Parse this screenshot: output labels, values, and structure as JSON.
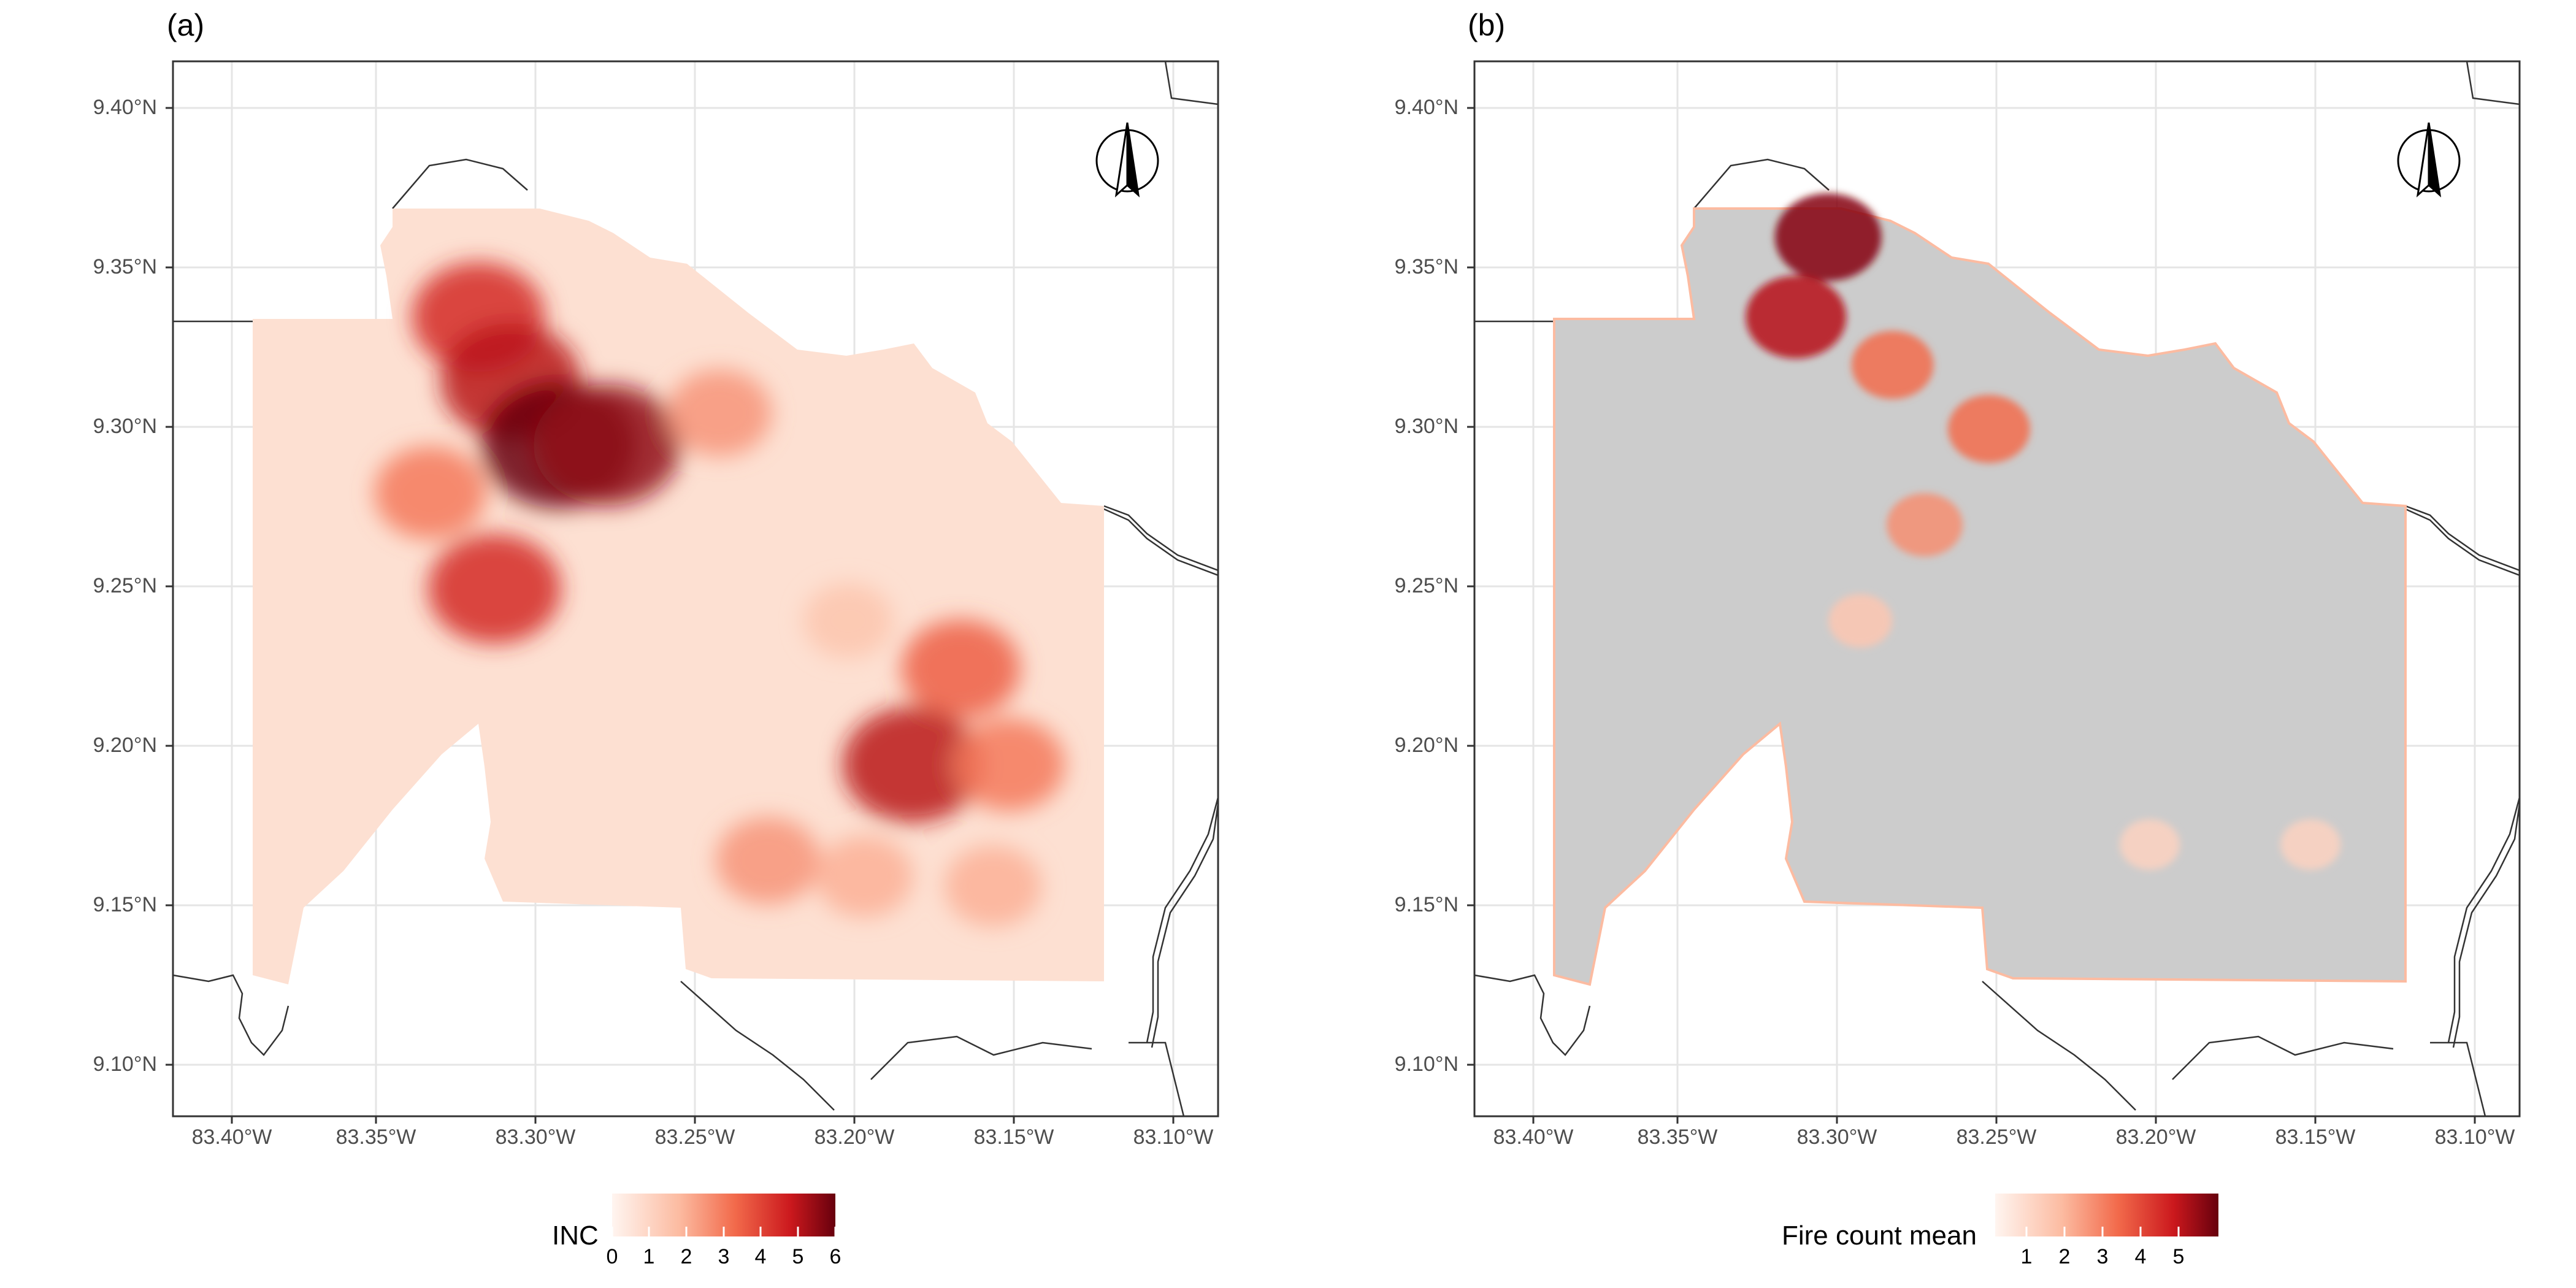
{
  "panels": [
    {
      "tag": "(a)",
      "legend": {
        "title": "INC",
        "ticks": [
          "0",
          "1",
          "2",
          "3",
          "4",
          "5",
          "6"
        ],
        "min": 0,
        "max": 6
      },
      "north_label": "N"
    },
    {
      "tag": "(b)",
      "legend": {
        "title": "Fire count mean",
        "ticks": [
          "1",
          "2",
          "3",
          "4",
          "5"
        ],
        "min": 0.3,
        "max": 5.3
      },
      "north_label": "N"
    }
  ],
  "y_axis": [
    "9.40°N",
    "9.35°N",
    "9.30°N",
    "9.25°N",
    "9.20°N",
    "9.15°N",
    "9.10°N"
  ],
  "x_axis": [
    "83.40°W",
    "83.35°W",
    "83.30°W",
    "83.25°W",
    "83.20°W",
    "83.15°W",
    "83.10°W"
  ],
  "colors": {
    "low": "#fde0d2",
    "mid": "#f26a4b",
    "high": "#a50f15",
    "background_b": "#cccccc",
    "grid": "#e5e5e5"
  },
  "chart_data": [
    {
      "type": "heatmap",
      "variable": "INC",
      "scale": [
        0,
        6
      ],
      "lat_range": [
        9.085,
        9.415
      ],
      "lon_range": [
        -83.41,
        -83.085
      ],
      "hotspots": [
        {
          "lon": -83.315,
          "lat": 9.335,
          "value": 4.5
        },
        {
          "lon": -83.305,
          "lat": 9.315,
          "value": 5
        },
        {
          "lon": -83.29,
          "lat": 9.295,
          "value": 6
        },
        {
          "lon": -83.275,
          "lat": 9.295,
          "value": 5.5
        },
        {
          "lon": -83.33,
          "lat": 9.28,
          "value": 3
        },
        {
          "lon": -83.31,
          "lat": 9.25,
          "value": 4.5
        },
        {
          "lon": -83.24,
          "lat": 9.305,
          "value": 2.5
        },
        {
          "lon": -83.165,
          "lat": 9.225,
          "value": 3.5
        },
        {
          "lon": -83.18,
          "lat": 9.195,
          "value": 5
        },
        {
          "lon": -83.15,
          "lat": 9.195,
          "value": 3
        },
        {
          "lon": -83.225,
          "lat": 9.165,
          "value": 2.5
        },
        {
          "lon": -83.195,
          "lat": 9.16,
          "value": 2
        },
        {
          "lon": -83.155,
          "lat": 9.157,
          "value": 2
        },
        {
          "lon": -83.2,
          "lat": 9.24,
          "value": 1.5
        }
      ]
    },
    {
      "type": "heatmap",
      "variable": "Fire count mean",
      "scale": [
        0.3,
        5.3
      ],
      "lat_range": [
        9.085,
        9.415
      ],
      "lon_range": [
        -83.41,
        -83.085
      ],
      "hotspots": [
        {
          "lon": -83.3,
          "lat": 9.36,
          "value": 5
        },
        {
          "lon": -83.31,
          "lat": 9.335,
          "value": 4.5
        },
        {
          "lon": -83.28,
          "lat": 9.32,
          "value": 3
        },
        {
          "lon": -83.25,
          "lat": 9.3,
          "value": 3
        },
        {
          "lon": -83.27,
          "lat": 9.27,
          "value": 2.5
        },
        {
          "lon": -83.29,
          "lat": 9.24,
          "value": 1.5
        },
        {
          "lon": -83.2,
          "lat": 9.17,
          "value": 1.2
        },
        {
          "lon": -83.15,
          "lat": 9.17,
          "value": 1.2
        }
      ]
    }
  ]
}
